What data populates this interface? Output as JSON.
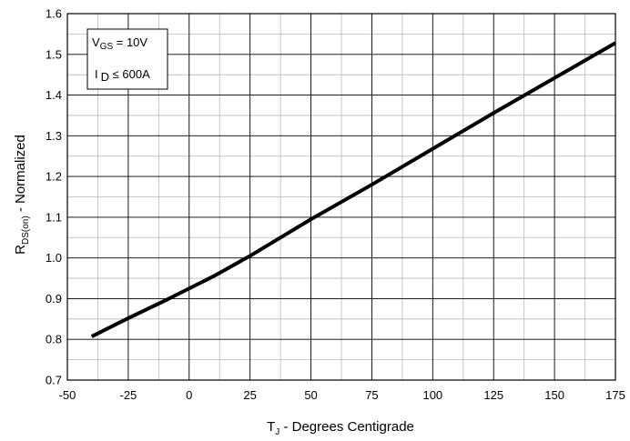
{
  "chart_data": {
    "type": "line",
    "xlabel_main": "T",
    "xlabel_sub": "J",
    "xlabel_rest": " - Degrees Centigrade",
    "ylabel_main": "R",
    "ylabel_sub": "DS(on)",
    "ylabel_rest": " - Normalized",
    "xlim": [
      -50,
      175
    ],
    "ylim": [
      0.7,
      1.6
    ],
    "x_ticks": [
      "-50",
      "-25",
      "0",
      "25",
      "50",
      "75",
      "100",
      "125",
      "150",
      "175"
    ],
    "y_ticks": [
      "0.7",
      "0.8",
      "0.9",
      "1.0",
      "1.1",
      "1.2",
      "1.3",
      "1.4",
      "1.5",
      "1.6"
    ],
    "grid": true,
    "legend_placement": "top-left",
    "annotation": {
      "line1_main": "V",
      "line1_sub": "GS",
      "line1_rest": " = 10V",
      "line2_main": "I",
      "line2_sub": "D",
      "line2_rest": " ≤ 600A"
    },
    "series": [
      {
        "x": [
          -40,
          -25,
          -10,
          0,
          10,
          25,
          50,
          75,
          100,
          125,
          150,
          175
        ],
        "y": [
          0.807,
          0.852,
          0.895,
          0.925,
          0.955,
          1.005,
          1.095,
          1.18,
          1.268,
          1.356,
          1.442,
          1.528
        ]
      }
    ],
    "colors": {
      "line": "#000000",
      "grid": "#9a9a9a",
      "frame": "#000000"
    }
  }
}
